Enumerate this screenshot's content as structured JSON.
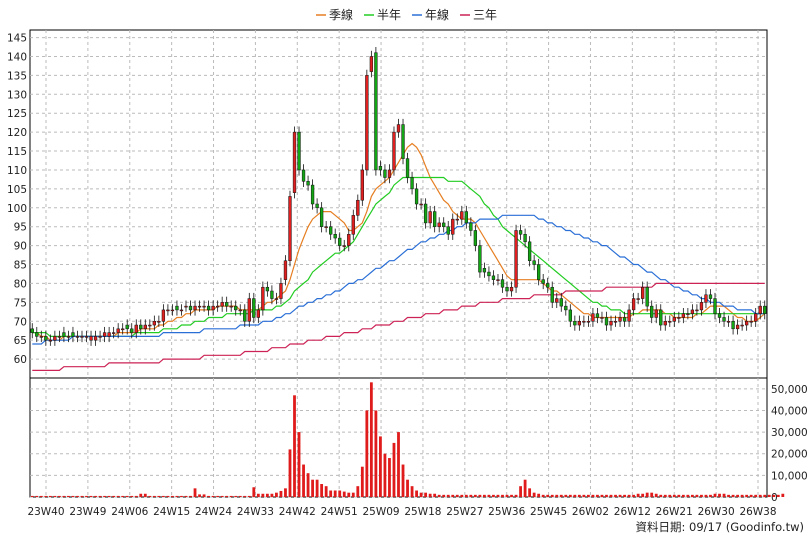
{
  "chart_data": [
    {
      "type": "candlestick",
      "title": "",
      "legend": {
        "placement": "top-center",
        "items": [
          {
            "name": "季線",
            "color": "#e67e22"
          },
          {
            "name": "半年",
            "color": "#22cc22"
          },
          {
            "name": "年線",
            "color": "#2a6fd6"
          },
          {
            "name": "三年",
            "color": "#cc2255"
          }
        ]
      },
      "ylim": [
        55,
        147
      ],
      "y_ticks": [
        60,
        65,
        70,
        75,
        80,
        85,
        90,
        95,
        100,
        105,
        110,
        115,
        120,
        125,
        130,
        135,
        140,
        145
      ],
      "x_ticks": [
        "23W40",
        "23W49",
        "24W06",
        "24W15",
        "24W24",
        "24W33",
        "24W42",
        "24W51",
        "25W09",
        "25W18",
        "25W27",
        "25W36",
        "25W45",
        "26W02",
        "26W12",
        "26W21",
        "26W30",
        "26W38"
      ],
      "grid": true,
      "up_color": "#e02020",
      "down_color": "#13a513",
      "candle_close": [
        67,
        66,
        66,
        65,
        65,
        66,
        66,
        66,
        66,
        66,
        66,
        66,
        66,
        66,
        66,
        66,
        67,
        67,
        67,
        68,
        68,
        68,
        67,
        69,
        68,
        69,
        69,
        70,
        70,
        73,
        73,
        73,
        73,
        73,
        74,
        73,
        74,
        74,
        74,
        73,
        74,
        74,
        75,
        74,
        74,
        73,
        73,
        70,
        76,
        71,
        73,
        79,
        78,
        76,
        76,
        80,
        86,
        103,
        120,
        110,
        107,
        106,
        101,
        100,
        95,
        95,
        93,
        92,
        90,
        90,
        93,
        98,
        102,
        110,
        135,
        140,
        110,
        110,
        108,
        110,
        120,
        122,
        113,
        108,
        105,
        101,
        101,
        96,
        99,
        95,
        96,
        95,
        93,
        97,
        97,
        99,
        96,
        94,
        90,
        83,
        83,
        82,
        81,
        81,
        79,
        78,
        79,
        94,
        93,
        91,
        86,
        85,
        81,
        80,
        79,
        75,
        76,
        74,
        73,
        70,
        69,
        70,
        70,
        70,
        72,
        71,
        71,
        69,
        70,
        70,
        71,
        70,
        73,
        76,
        76,
        79,
        74,
        71,
        73,
        69,
        70,
        70,
        71,
        71,
        72,
        72,
        73,
        73,
        75,
        77,
        76,
        72,
        71,
        70,
        70,
        68,
        69,
        69,
        70,
        70,
        72,
        74,
        72
      ],
      "candle_open": [
        68,
        67,
        66,
        66,
        65,
        65,
        66,
        67,
        66,
        67,
        66,
        66,
        66,
        65,
        65,
        66,
        66,
        66,
        67,
        67,
        68,
        69,
        68,
        67,
        69,
        68,
        69,
        69,
        70,
        70,
        73,
        73,
        74,
        73,
        74,
        74,
        73,
        74,
        74,
        74,
        73,
        74,
        74,
        75,
        74,
        74,
        73,
        73,
        70,
        76,
        71,
        73,
        79,
        78,
        76,
        76,
        81,
        86,
        104,
        120,
        110,
        107,
        106,
        101,
        100,
        95,
        95,
        93,
        92,
        90,
        90,
        93,
        98,
        102,
        110,
        136,
        141,
        111,
        110,
        108,
        110,
        120,
        122,
        113,
        108,
        105,
        101,
        101,
        96,
        99,
        95,
        96,
        95,
        93,
        97,
        97,
        99,
        96,
        94,
        90,
        84,
        83,
        82,
        81,
        81,
        79,
        78,
        79,
        94,
        93,
        91,
        86,
        85,
        81,
        80,
        79,
        75,
        76,
        74,
        73,
        70,
        69,
        70,
        70,
        70,
        72,
        71,
        71,
        69,
        70,
        70,
        71,
        70,
        73,
        76,
        76,
        79,
        74,
        71,
        73,
        69,
        70,
        70,
        71,
        71,
        72,
        72,
        73,
        73,
        75,
        77,
        76,
        72,
        71,
        70,
        70,
        68,
        69,
        69,
        70,
        70,
        72,
        74
      ],
      "series": [
        {
          "name": "季線",
          "color": "#e67e22",
          "values": [
            67,
            67,
            66,
            66,
            65,
            65,
            65,
            66,
            66,
            66,
            66,
            66,
            66,
            66,
            66,
            66,
            66,
            66,
            66,
            67,
            67,
            67,
            67,
            67,
            68,
            68,
            68,
            68,
            69,
            69,
            70,
            70,
            71,
            71,
            72,
            72,
            73,
            73,
            73,
            73,
            73,
            74,
            74,
            74,
            74,
            74,
            73,
            73,
            73,
            73,
            73,
            74,
            75,
            75,
            76,
            77,
            78,
            81,
            85,
            89,
            92,
            95,
            97,
            98,
            99,
            99,
            99,
            98,
            97,
            96,
            94,
            94,
            95,
            96,
            99,
            103,
            105,
            106,
            107,
            108,
            110,
            112,
            114,
            116,
            117,
            116,
            114,
            111,
            108,
            106,
            104,
            102,
            101,
            99,
            98,
            97,
            97,
            97,
            96,
            94,
            92,
            90,
            88,
            86,
            84,
            82,
            81,
            81,
            81,
            81,
            81,
            81,
            81,
            80,
            79,
            78,
            78,
            77,
            76,
            75,
            74,
            73,
            72,
            72,
            71,
            71,
            71,
            71,
            71,
            71,
            71,
            71,
            71,
            72,
            72,
            73,
            73,
            73,
            73,
            73,
            72,
            72,
            71,
            71,
            71,
            71,
            71,
            72,
            72,
            73,
            74,
            74,
            74,
            74,
            73,
            72,
            71,
            71,
            70,
            70,
            70,
            71,
            72
          ]
        },
        {
          "name": "半年",
          "color": "#22cc22",
          "values": [
            67,
            67,
            67,
            67,
            66,
            66,
            66,
            66,
            66,
            66,
            66,
            66,
            66,
            66,
            66,
            66,
            66,
            66,
            66,
            66,
            66,
            66,
            66,
            67,
            67,
            67,
            67,
            67,
            67,
            68,
            68,
            68,
            68,
            69,
            69,
            69,
            70,
            70,
            70,
            71,
            71,
            71,
            71,
            72,
            72,
            72,
            72,
            72,
            72,
            73,
            73,
            73,
            73,
            73,
            74,
            74,
            75,
            76,
            78,
            79,
            80,
            81,
            83,
            84,
            85,
            86,
            87,
            88,
            88,
            89,
            90,
            91,
            93,
            95,
            97,
            99,
            101,
            102,
            103,
            104,
            106,
            107,
            108,
            108,
            108,
            108,
            108,
            108,
            108,
            108,
            108,
            108,
            107,
            107,
            107,
            107,
            106,
            105,
            104,
            103,
            101,
            100,
            98,
            97,
            95,
            94,
            93,
            92,
            91,
            90,
            89,
            88,
            87,
            86,
            85,
            84,
            83,
            82,
            81,
            80,
            79,
            78,
            77,
            76,
            75,
            75,
            74,
            74,
            73,
            73,
            73,
            72,
            72,
            72,
            72,
            72,
            72,
            72,
            72,
            72,
            72,
            72,
            72,
            72,
            72,
            72,
            72,
            72,
            72,
            72,
            72,
            72,
            72,
            72,
            72,
            72,
            72,
            72,
            72,
            72,
            72,
            72,
            72
          ]
        },
        {
          "name": "年線",
          "color": "#2a6fd6",
          "values": [
            64,
            64,
            64,
            65,
            65,
            65,
            65,
            65,
            65,
            66,
            66,
            66,
            66,
            66,
            66,
            66,
            66,
            66,
            66,
            66,
            66,
            66,
            66,
            66,
            66,
            66,
            66,
            66,
            66,
            67,
            67,
            67,
            67,
            67,
            67,
            67,
            67,
            67,
            68,
            68,
            68,
            68,
            68,
            68,
            68,
            68,
            69,
            69,
            69,
            69,
            69,
            70,
            70,
            70,
            71,
            71,
            72,
            72,
            73,
            74,
            74,
            75,
            75,
            76,
            76,
            77,
            77,
            78,
            78,
            79,
            80,
            80,
            81,
            81,
            82,
            83,
            84,
            84,
            85,
            86,
            86,
            87,
            88,
            89,
            89,
            90,
            91,
            91,
            92,
            92,
            93,
            93,
            94,
            94,
            95,
            95,
            96,
            96,
            96,
            97,
            97,
            97,
            97,
            97,
            98,
            98,
            98,
            98,
            98,
            98,
            98,
            98,
            97,
            97,
            96,
            96,
            95,
            95,
            94,
            94,
            93,
            93,
            92,
            92,
            91,
            91,
            90,
            90,
            89,
            88,
            87,
            87,
            86,
            85,
            85,
            84,
            83,
            83,
            82,
            81,
            81,
            80,
            79,
            79,
            78,
            78,
            77,
            77,
            76,
            76,
            75,
            75,
            75,
            74,
            74,
            74,
            73,
            73,
            73,
            73,
            72,
            72,
            72
          ]
        },
        {
          "name": "三年",
          "color": "#cc2255",
          "values": [
            57,
            57,
            57,
            57,
            57,
            57,
            57,
            58,
            58,
            58,
            58,
            58,
            58,
            58,
            58,
            58,
            58,
            59,
            59,
            59,
            59,
            59,
            59,
            59,
            59,
            59,
            59,
            59,
            59,
            60,
            60,
            60,
            60,
            60,
            60,
            60,
            60,
            60,
            61,
            61,
            61,
            61,
            61,
            61,
            61,
            61,
            61,
            62,
            62,
            62,
            62,
            62,
            62,
            63,
            63,
            63,
            63,
            64,
            64,
            64,
            64,
            65,
            65,
            65,
            65,
            66,
            66,
            66,
            66,
            67,
            67,
            67,
            67,
            68,
            68,
            68,
            69,
            69,
            69,
            69,
            70,
            70,
            70,
            71,
            71,
            71,
            71,
            72,
            72,
            72,
            72,
            73,
            73,
            73,
            73,
            74,
            74,
            74,
            74,
            75,
            75,
            75,
            75,
            75,
            76,
            76,
            76,
            76,
            76,
            76,
            76,
            77,
            77,
            77,
            77,
            77,
            77,
            77,
            78,
            78,
            78,
            78,
            78,
            78,
            78,
            78,
            78,
            79,
            79,
            79,
            79,
            79,
            79,
            79,
            79,
            79,
            79,
            79,
            80,
            80,
            80,
            80,
            80,
            80,
            80,
            80,
            80,
            80,
            80,
            80,
            80,
            80,
            80,
            80,
            80,
            80,
            80,
            80,
            80,
            80,
            80,
            80,
            80
          ]
        }
      ]
    },
    {
      "type": "bar",
      "title": "",
      "ylim": [
        0,
        55000
      ],
      "y_ticks": [
        "0",
        "10,000",
        "20,000",
        "30,000",
        "40,000",
        "50,000"
      ],
      "color": "#e01b1b",
      "values": [
        500,
        500,
        500,
        500,
        500,
        500,
        500,
        500,
        500,
        500,
        500,
        500,
        500,
        500,
        500,
        500,
        500,
        500,
        500,
        500,
        500,
        500,
        500,
        500,
        1500,
        1500,
        500,
        500,
        500,
        500,
        500,
        500,
        500,
        500,
        500,
        500,
        4000,
        1200,
        1200,
        500,
        500,
        500,
        500,
        500,
        500,
        500,
        500,
        500,
        500,
        4500,
        1500,
        1500,
        1500,
        1500,
        2000,
        2800,
        4000,
        22000,
        47000,
        30000,
        15000,
        11000,
        8000,
        8000,
        6000,
        5000,
        3000,
        3000,
        3000,
        2500,
        2000,
        2000,
        5000,
        14000,
        40000,
        53000,
        40000,
        28000,
        20000,
        18000,
        25000,
        30000,
        15000,
        8000,
        5000,
        3000,
        2000,
        2000,
        1500,
        1500,
        1000,
        1000,
        1000,
        1000,
        1000,
        1000,
        1000,
        1000,
        1000,
        1000,
        1000,
        1000,
        1000,
        1000,
        1000,
        1000,
        1000,
        1000,
        5000,
        8000,
        4000,
        2000,
        1500,
        1000,
        1000,
        1000,
        1000,
        1000,
        1000,
        1000,
        1000,
        1000,
        1000,
        1000,
        1000,
        1000,
        1000,
        1000,
        1000,
        1000,
        1000,
        1000,
        1000,
        1000,
        1500,
        1500,
        2000,
        2000,
        1500,
        1000,
        1000,
        1000,
        1000,
        1000,
        1000,
        1000,
        1000,
        1000,
        1000,
        1000,
        1000,
        1500,
        1500,
        1500,
        1000,
        1000,
        1000,
        1000,
        1000,
        1000,
        1000,
        1000,
        1000,
        1000,
        1000,
        1000,
        1500
      ]
    }
  ],
  "footer": {
    "source": "資料日期: 09/17  (Goodinfo.tw)"
  }
}
